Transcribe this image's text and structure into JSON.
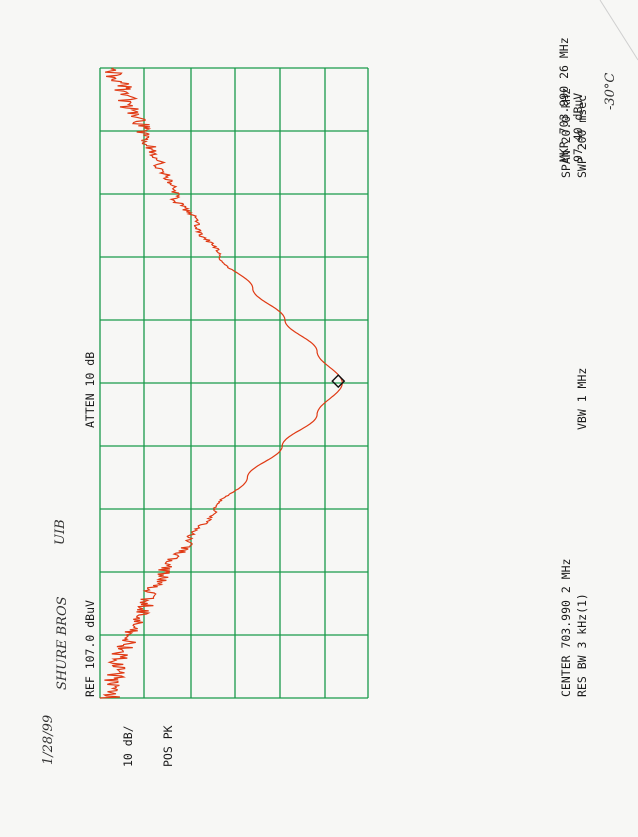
{
  "handwritten": {
    "date": "1/28/99",
    "device": "SHURE BROS",
    "unit": "UIB",
    "temperature": "-30°C"
  },
  "annotations": {
    "ref": "REF  107.0 dBuV",
    "scale": "10 dB/",
    "detector": "POS PK",
    "atten": "ATTEN 10 dB",
    "marker": "MKR 703.990 26 MHz",
    "marker_level": "97.40 dBuV",
    "center": "CENTER 703.990 2 MHz",
    "res_bw": "RES BW 3 kHz(1)",
    "vbw": "VBW 1 MHz",
    "span": "SPAN 20.0 kHz",
    "sweep": "SWP 200 msec"
  },
  "colors": {
    "grid": "#1a9a4a",
    "trace": "#e03a14",
    "text": "#1a1a1a",
    "paper": "#f7f7f5"
  },
  "chart_data": {
    "type": "line",
    "units": {
      "x": "kHz offset from center",
      "y": "dBuV"
    },
    "xlim": [
      -10,
      10
    ],
    "ylim": [
      7,
      107
    ],
    "grid": true,
    "marker": {
      "x": 0.06,
      "y": 97.4
    },
    "series": [
      {
        "x": [
          -10,
          -9,
          -8,
          -7,
          -6,
          -5,
          -4,
          -3,
          -2,
          -1,
          0,
          1,
          2,
          3,
          4,
          5,
          6,
          7,
          8,
          9,
          10
        ],
        "y": [
          11,
          13,
          18,
          24,
          31,
          40,
          50,
          62,
          75,
          88,
          97.4,
          88,
          76,
          64,
          52,
          43,
          35,
          29,
          23,
          17,
          12
        ]
      }
    ]
  }
}
